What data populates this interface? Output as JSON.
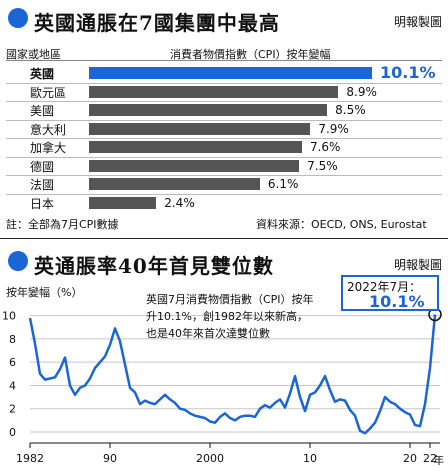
{
  "top_chart": {
    "title": "英國通脹在7國集團中最高",
    "credit": "明報製圖",
    "column_country": "國家或地區",
    "column_metric": "消費者物價指數（CPI）按年變幅",
    "note": "註：全部為7月CPI數據",
    "source": "資料來源：OECD, ONS, Eurostat"
  },
  "bottom_chart": {
    "title": "英通脹率40年首見雙位數",
    "credit": "明報製圖",
    "y_axis_label": "按年變幅（%）",
    "x_unit": "年",
    "annotation": "英國7月消費物價指數（CPI）按年升10.1%，創1982年以來新高，也是40年來首次達雙位數",
    "callout_label": "2022年7月：",
    "callout_value": "10.1%"
  },
  "chart_data": [
    {
      "type": "bar",
      "orientation": "horizontal",
      "title": "英國通脹在7國集團中最高",
      "categories": [
        "英國",
        "歐元區",
        "美國",
        "意大利",
        "加拿大",
        "德國",
        "法國",
        "日本"
      ],
      "values": [
        10.1,
        8.9,
        8.5,
        7.9,
        7.6,
        7.5,
        6.1,
        2.4
      ],
      "value_labels": [
        "10.1%",
        "8.9%",
        "8.5%",
        "7.9%",
        "7.6%",
        "7.5%",
        "6.1%",
        "2.4%"
      ],
      "xlim": [
        0,
        10.1
      ],
      "highlight": "英國",
      "colors": {
        "highlight": "#1a66d6",
        "bar": "#555555"
      }
    },
    {
      "type": "line",
      "title": "英通脹率40年首見雙位數",
      "ylabel": "按年變幅（%）",
      "xlabel": "年",
      "x_ticks": [
        "1982",
        "90",
        "2000",
        "10",
        "20",
        "22"
      ],
      "x_tick_values": [
        1982,
        1990,
        2000,
        2010,
        2020,
        2022
      ],
      "y_ticks": [
        0,
        2,
        4,
        6,
        8,
        10
      ],
      "ylim": [
        0,
        11
      ],
      "xlim": [
        1982,
        2023
      ],
      "grid": "horizontal",
      "colors": {
        "line": "#1a66d6",
        "grid": "#c8c8c8"
      },
      "x": [
        1982.0,
        1982.5,
        1983.0,
        1983.5,
        1984.0,
        1984.5,
        1985.0,
        1985.5,
        1986.0,
        1986.5,
        1987.0,
        1987.5,
        1988.0,
        1988.5,
        1989.0,
        1989.5,
        1990.0,
        1990.5,
        1991.0,
        1991.5,
        1992.0,
        1992.5,
        1993.0,
        1993.5,
        1994.0,
        1994.5,
        1995.0,
        1995.5,
        1996.0,
        1996.5,
        1997.0,
        1997.5,
        1998.0,
        1998.5,
        1999.0,
        1999.5,
        2000.0,
        2000.5,
        2001.0,
        2001.5,
        2002.0,
        2002.5,
        2003.0,
        2003.5,
        2004.0,
        2004.5,
        2005.0,
        2005.5,
        2006.0,
        2006.5,
        2007.0,
        2007.5,
        2008.0,
        2008.5,
        2009.0,
        2009.5,
        2010.0,
        2010.5,
        2011.0,
        2011.5,
        2012.0,
        2012.5,
        2013.0,
        2013.5,
        2014.0,
        2014.5,
        2015.0,
        2015.5,
        2016.0,
        2016.5,
        2017.0,
        2017.5,
        2018.0,
        2018.5,
        2019.0,
        2019.5,
        2020.0,
        2020.5,
        2021.0,
        2021.5,
        2022.0,
        2022.5
      ],
      "values": [
        9.8,
        7.6,
        5.0,
        4.5,
        4.6,
        4.7,
        5.4,
        6.4,
        4.0,
        3.2,
        3.8,
        4.0,
        4.6,
        5.5,
        6.0,
        6.5,
        7.5,
        8.9,
        7.8,
        5.8,
        3.8,
        3.4,
        2.4,
        2.7,
        2.5,
        2.4,
        2.8,
        3.2,
        2.8,
        2.5,
        2.0,
        1.9,
        1.6,
        1.4,
        1.3,
        1.2,
        0.9,
        0.8,
        1.3,
        1.6,
        1.2,
        1.0,
        1.3,
        1.4,
        1.4,
        1.3,
        2.0,
        2.3,
        2.1,
        2.5,
        2.8,
        2.1,
        3.3,
        4.8,
        3.0,
        1.8,
        3.2,
        3.4,
        4.0,
        4.8,
        3.6,
        2.6,
        2.8,
        2.7,
        1.9,
        1.4,
        0.1,
        -0.1,
        0.3,
        0.8,
        1.8,
        3.0,
        2.6,
        2.4,
        2.0,
        1.7,
        1.5,
        0.6,
        0.5,
        2.4,
        5.5,
        10.1
      ],
      "annotation": "英國7月消費物價指數（CPI）按年升10.1%，創1982年以來新高，也是40年來首次達雙位數",
      "highlight_point": {
        "x": 2022.5,
        "y": 10.1,
        "label": "2022年7月：10.1%"
      }
    }
  ]
}
